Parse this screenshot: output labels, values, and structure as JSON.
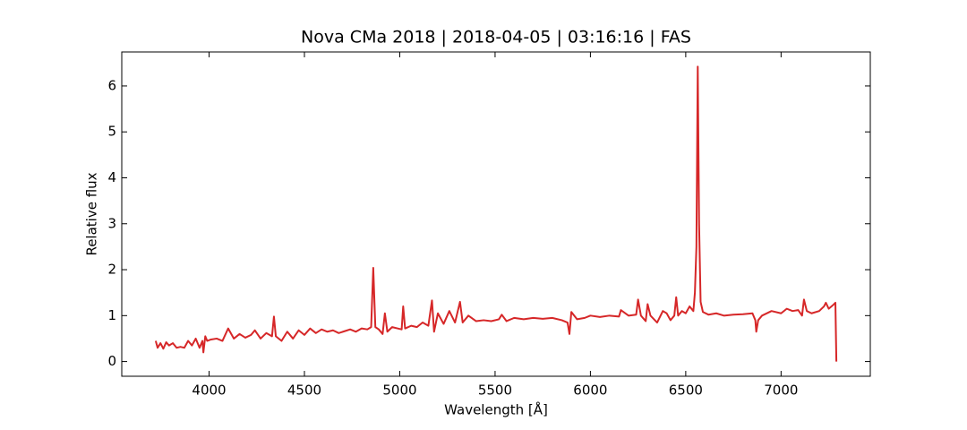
{
  "chart_data": {
    "type": "line",
    "title": "Nova CMa 2018 | 2018-04-05 | 03:16:16 | FAS",
    "x_label": "Wavelength [Å]",
    "y_label": "Relative flux",
    "xlim": [
      3542,
      7468
    ],
    "ylim": [
      -0.32,
      6.74
    ],
    "xticks": [
      4000,
      4500,
      5000,
      5500,
      6000,
      6500,
      7000
    ],
    "yticks": [
      0,
      1,
      2,
      3,
      4,
      5,
      6
    ],
    "series": [
      {
        "color": "#d62728",
        "x": [
          3720,
          3730,
          3745,
          3760,
          3775,
          3790,
          3810,
          3830,
          3850,
          3870,
          3890,
          3910,
          3930,
          3950,
          3965,
          3970,
          3980,
          3990,
          4010,
          4040,
          4070,
          4100,
          4130,
          4160,
          4190,
          4220,
          4240,
          4270,
          4300,
          4330,
          4340,
          4350,
          4380,
          4410,
          4440,
          4470,
          4500,
          4530,
          4560,
          4590,
          4620,
          4650,
          4680,
          4710,
          4740,
          4770,
          4800,
          4830,
          4850,
          4861,
          4872,
          4890,
          4910,
          4922,
          4935,
          4960,
          4990,
          5010,
          5018,
          5028,
          5060,
          5090,
          5120,
          5150,
          5169,
          5180,
          5200,
          5230,
          5260,
          5290,
          5316,
          5330,
          5360,
          5400,
          5440,
          5480,
          5520,
          5535,
          5560,
          5600,
          5650,
          5700,
          5750,
          5800,
          5850,
          5880,
          5890,
          5900,
          5930,
          5970,
          6000,
          6050,
          6100,
          6150,
          6160,
          6200,
          6240,
          6250,
          6265,
          6290,
          6300,
          6315,
          6350,
          6380,
          6400,
          6420,
          6440,
          6450,
          6460,
          6480,
          6500,
          6520,
          6540,
          6548,
          6556,
          6563,
          6570,
          6578,
          6590,
          6620,
          6660,
          6700,
          6750,
          6800,
          6850,
          6865,
          6870,
          6880,
          6900,
          6950,
          7000,
          7030,
          7060,
          7090,
          7110,
          7120,
          7135,
          7160,
          7200,
          7225,
          7235,
          7250,
          7270,
          7285,
          7290
        ],
        "values": [
          0.45,
          0.3,
          0.4,
          0.28,
          0.42,
          0.35,
          0.4,
          0.3,
          0.32,
          0.3,
          0.45,
          0.35,
          0.5,
          0.3,
          0.45,
          0.2,
          0.55,
          0.45,
          0.48,
          0.5,
          0.45,
          0.72,
          0.5,
          0.6,
          0.52,
          0.58,
          0.68,
          0.5,
          0.62,
          0.55,
          0.98,
          0.55,
          0.45,
          0.65,
          0.5,
          0.68,
          0.58,
          0.72,
          0.62,
          0.7,
          0.65,
          0.68,
          0.62,
          0.66,
          0.7,
          0.65,
          0.72,
          0.7,
          0.75,
          2.04,
          0.75,
          0.7,
          0.6,
          1.05,
          0.65,
          0.75,
          0.72,
          0.7,
          1.2,
          0.72,
          0.78,
          0.75,
          0.85,
          0.78,
          1.33,
          0.65,
          1.05,
          0.82,
          1.1,
          0.85,
          1.3,
          0.85,
          1.0,
          0.88,
          0.9,
          0.88,
          0.92,
          1.02,
          0.88,
          0.95,
          0.92,
          0.95,
          0.93,
          0.95,
          0.9,
          0.85,
          0.6,
          1.08,
          0.92,
          0.95,
          1.0,
          0.97,
          1.0,
          0.98,
          1.12,
          1.0,
          1.02,
          1.35,
          1.0,
          0.88,
          1.25,
          1.0,
          0.85,
          1.1,
          1.05,
          0.9,
          1.0,
          1.4,
          1.0,
          1.1,
          1.05,
          1.2,
          1.1,
          1.5,
          2.5,
          6.42,
          3.0,
          1.3,
          1.08,
          1.02,
          1.05,
          1.0,
          1.02,
          1.03,
          1.05,
          0.9,
          0.65,
          0.9,
          1.0,
          1.1,
          1.05,
          1.15,
          1.1,
          1.12,
          1.0,
          1.35,
          1.1,
          1.05,
          1.1,
          1.2,
          1.28,
          1.15,
          1.22,
          1.28,
          0.0
        ]
      }
    ]
  }
}
